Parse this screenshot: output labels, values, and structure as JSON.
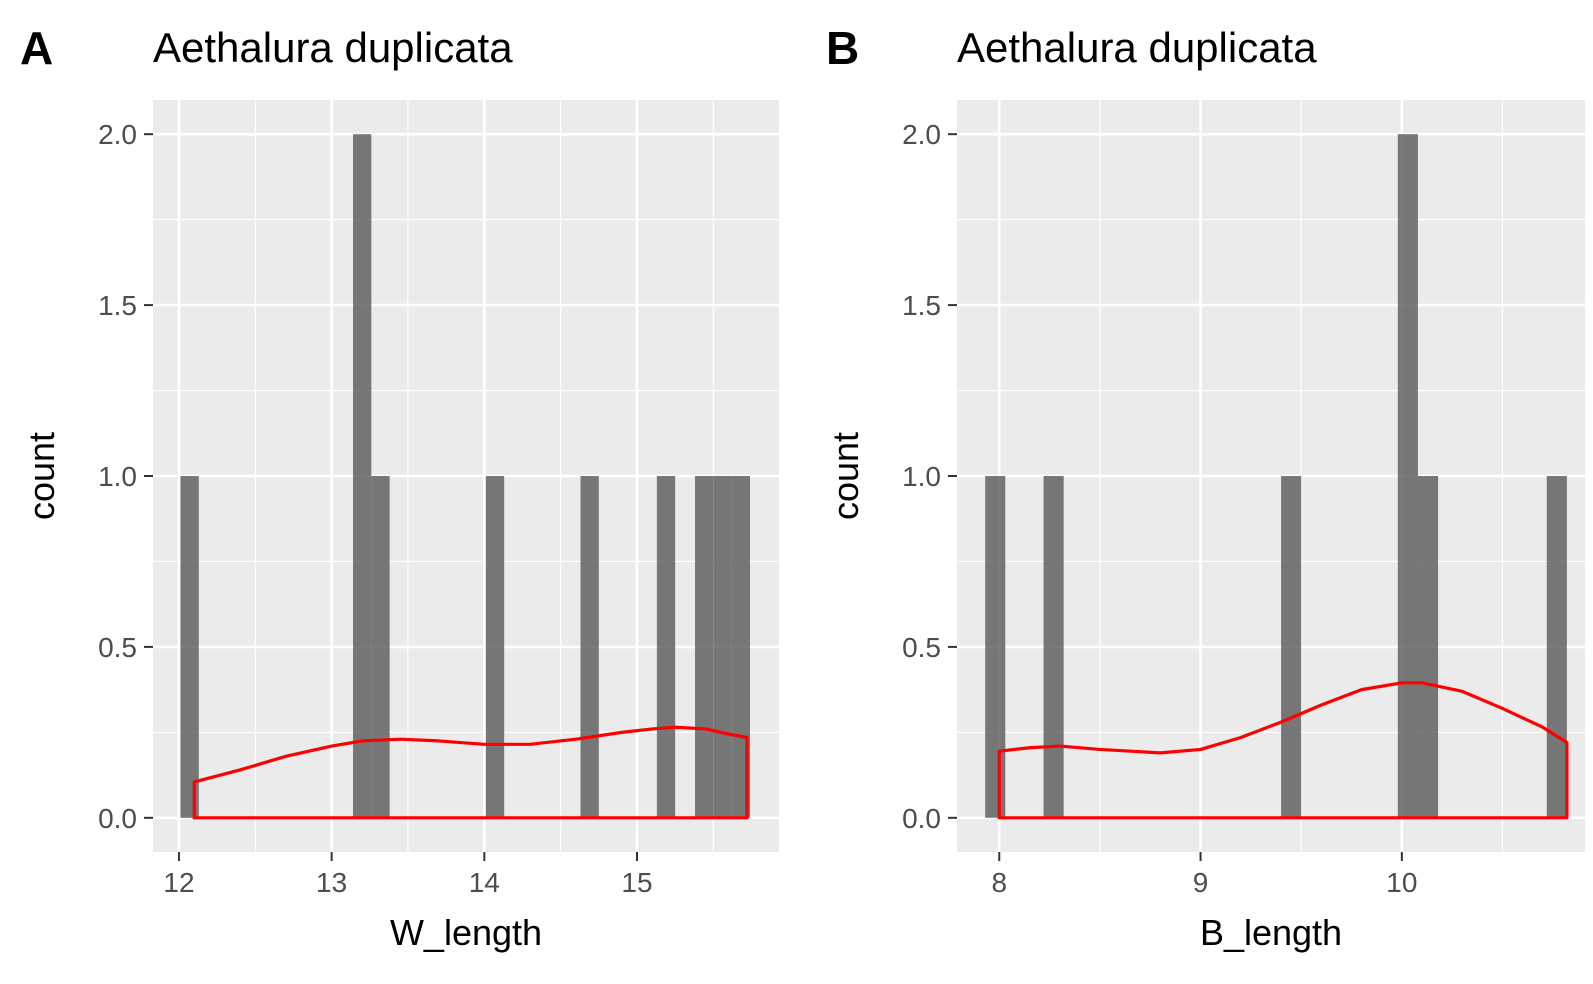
{
  "chart_data": [
    {
      "type": "histogram",
      "panel_tag": "A",
      "title": "Aethalura duplicata",
      "xlabel": "W_length",
      "ylabel": "count",
      "xlim": [
        11.83,
        15.93
      ],
      "ylim": [
        -0.1,
        2.1
      ],
      "x_ticks": [
        12,
        13,
        14,
        15
      ],
      "x_tick_labels": [
        "12",
        "13",
        "14",
        "15"
      ],
      "x_minor": [
        12.5,
        13.5,
        14.5,
        15.5
      ],
      "y_ticks": [
        0,
        0.5,
        1,
        1.5,
        2
      ],
      "y_tick_labels": [
        "0.0",
        "0.5",
        "1.0",
        "1.5",
        "2.0"
      ],
      "grid": true,
      "bar_fill": "#595959",
      "bars": [
        {
          "x0": 12.01,
          "x1": 12.13,
          "count": 1
        },
        {
          "x0": 13.14,
          "x1": 13.26,
          "count": 2
        },
        {
          "x0": 13.26,
          "x1": 13.38,
          "count": 1
        },
        {
          "x0": 14.01,
          "x1": 14.13,
          "count": 1
        },
        {
          "x0": 14.63,
          "x1": 14.75,
          "count": 1
        },
        {
          "x0": 15.13,
          "x1": 15.25,
          "count": 1
        },
        {
          "x0": 15.38,
          "x1": 15.5,
          "count": 1
        },
        {
          "x0": 15.5,
          "x1": 15.62,
          "count": 1
        },
        {
          "x0": 15.62,
          "x1": 15.74,
          "count": 1
        }
      ],
      "density_color": "#ff0000",
      "density": {
        "x": [
          12.1,
          12.4,
          12.7,
          13.0,
          13.2,
          13.45,
          13.7,
          14.0,
          14.3,
          14.6,
          14.9,
          15.1,
          15.25,
          15.45,
          15.6,
          15.72
        ],
        "y": [
          0.105,
          0.14,
          0.18,
          0.21,
          0.225,
          0.23,
          0.225,
          0.215,
          0.215,
          0.23,
          0.25,
          0.26,
          0.265,
          0.26,
          0.245,
          0.235
        ]
      }
    },
    {
      "type": "histogram",
      "panel_tag": "B",
      "title": "Aethalura duplicata",
      "xlabel": "B_length",
      "ylabel": "count",
      "xlim": [
        7.79,
        10.91
      ],
      "ylim": [
        -0.1,
        2.1
      ],
      "x_ticks": [
        8,
        9,
        10
      ],
      "x_tick_labels": [
        "8",
        "9",
        "10"
      ],
      "x_minor": [
        8.5,
        9.5,
        10.5
      ],
      "y_ticks": [
        0,
        0.5,
        1,
        1.5,
        2
      ],
      "y_tick_labels": [
        "0.0",
        "0.5",
        "1.0",
        "1.5",
        "2.0"
      ],
      "grid": true,
      "bar_fill": "#595959",
      "bars": [
        {
          "x0": 7.93,
          "x1": 8.03,
          "count": 1
        },
        {
          "x0": 8.22,
          "x1": 8.32,
          "count": 1
        },
        {
          "x0": 9.4,
          "x1": 9.5,
          "count": 1
        },
        {
          "x0": 9.98,
          "x1": 10.08,
          "count": 2
        },
        {
          "x0": 10.08,
          "x1": 10.18,
          "count": 1
        },
        {
          "x0": 10.72,
          "x1": 10.82,
          "count": 1
        }
      ],
      "density_color": "#ff0000",
      "density": {
        "x": [
          8.0,
          8.15,
          8.3,
          8.5,
          8.8,
          9.0,
          9.2,
          9.4,
          9.6,
          9.8,
          10.0,
          10.1,
          10.3,
          10.5,
          10.7,
          10.82
        ],
        "y": [
          0.195,
          0.205,
          0.21,
          0.2,
          0.19,
          0.2,
          0.235,
          0.28,
          0.33,
          0.375,
          0.395,
          0.395,
          0.37,
          0.32,
          0.265,
          0.22
        ]
      }
    }
  ]
}
